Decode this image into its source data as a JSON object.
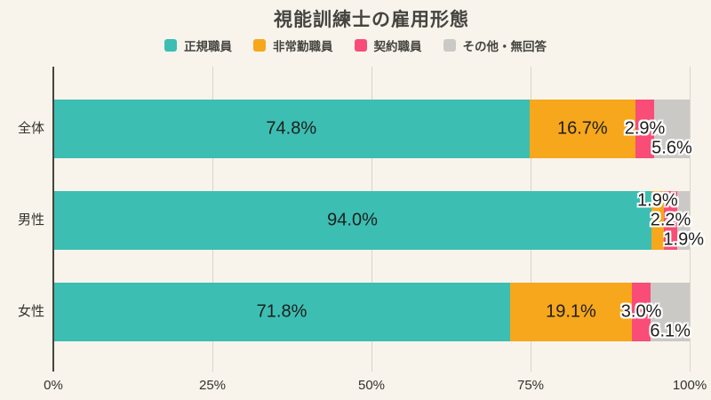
{
  "chart_data": {
    "type": "bar",
    "stacked": true,
    "orientation": "horizontal",
    "title": "視能訓練士の雇用形態",
    "categories": [
      "全体",
      "男性",
      "女性"
    ],
    "series": [
      {
        "name": "正規職員",
        "color": "#3cbeb3",
        "values": [
          74.8,
          94.0,
          71.8
        ]
      },
      {
        "name": "非常勤職員",
        "color": "#f6a71c",
        "values": [
          16.7,
          1.9,
          19.1
        ]
      },
      {
        "name": "契約職員",
        "color": "#f94c77",
        "values": [
          2.9,
          2.2,
          3.0
        ]
      },
      {
        "name": "その他・無回答",
        "color": "#cbc9c5",
        "values": [
          5.6,
          1.9,
          6.1
        ]
      }
    ],
    "value_labels": [
      [
        "74.8%",
        "16.7%",
        "2.9%",
        "5.6%"
      ],
      [
        "94.0%",
        "1.9%",
        "2.2%",
        "1.9%"
      ],
      [
        "71.8%",
        "19.1%",
        "3.0%",
        "6.1%"
      ]
    ],
    "label_slots": [
      [
        "mid",
        "mid",
        "mid",
        "low"
      ],
      [
        "mid",
        "high",
        "mid",
        "low"
      ],
      [
        "mid",
        "mid",
        "mid",
        "low"
      ]
    ],
    "x_ticks": [
      "0%",
      "25%",
      "50%",
      "75%",
      "100%"
    ],
    "x_tick_values": [
      0,
      25,
      50,
      75,
      100
    ],
    "xlim": [
      0,
      100
    ],
    "grid": true,
    "legend_position": "top",
    "background_color": "#f8f4eb"
  }
}
